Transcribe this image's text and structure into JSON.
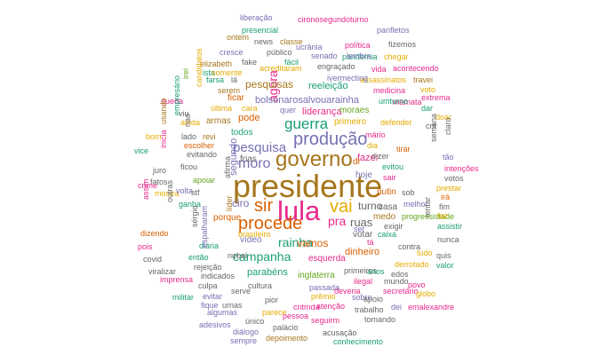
{
  "palette": {
    "teal": "#1b9e77",
    "orange": "#d95f02",
    "purple": "#7570b3",
    "pink": "#e7298a",
    "green": "#66a61e",
    "gold": "#e6ab02",
    "brown": "#a6761d",
    "gray": "#666666"
  },
  "words": [
    {
      "text": "presidente",
      "color": "brown"
    },
    {
      "text": "lula",
      "color": "pink"
    },
    {
      "text": "governo",
      "color": "brown"
    },
    {
      "text": "produção",
      "color": "purple"
    },
    {
      "text": "procede",
      "color": "orange"
    },
    {
      "text": "sir",
      "color": "orange"
    },
    {
      "text": "vai",
      "color": "gold"
    },
    {
      "text": "guerra",
      "color": "teal"
    },
    {
      "text": "moro",
      "color": "purple"
    },
    {
      "text": "rainha",
      "color": "teal"
    },
    {
      "text": "pesquisa",
      "color": "purple"
    },
    {
      "text": "agora",
      "color": "pink"
    },
    {
      "text": "pra",
      "color": "pink"
    },
    {
      "text": "campanha",
      "color": "teal"
    },
    {
      "text": "turno",
      "color": "gray"
    },
    {
      "text": "ruas",
      "color": "gray"
    },
    {
      "text": "vamos",
      "color": "orange"
    },
    {
      "text": "bolsonarosalvouarainha",
      "color": "purple"
    },
    {
      "text": "reeleição",
      "color": "teal"
    },
    {
      "text": "pesquisas",
      "color": "brown"
    },
    {
      "text": "liderança",
      "color": "pink"
    },
    {
      "text": "moraes",
      "color": "green"
    },
    {
      "text": "primeiro",
      "color": "gold"
    },
    {
      "text": "fazer",
      "color": "pink"
    },
    {
      "text": "frias",
      "color": "gray"
    },
    {
      "text": "ciro",
      "color": "purple"
    },
    {
      "text": "segundo",
      "color": "purple"
    },
    {
      "text": "todos",
      "color": "teal"
    },
    {
      "text": "pode",
      "color": "orange"
    },
    {
      "text": "armas",
      "color": "brown"
    },
    {
      "text": "dinheiro",
      "color": "orange"
    },
    {
      "text": "esquerda",
      "color": "pink"
    },
    {
      "text": "inglaterra",
      "color": "green"
    },
    {
      "text": "parabéns",
      "color": "teal"
    },
    {
      "text": "porque",
      "color": "orange"
    },
    {
      "text": "vídeo",
      "color": "purple"
    },
    {
      "text": "votar",
      "color": "gray"
    },
    {
      "text": "hoje",
      "color": "purple"
    },
    {
      "text": "putin",
      "color": "orange"
    },
    {
      "text": "casa",
      "color": "gray"
    },
    {
      "text": "medo",
      "color": "brown"
    },
    {
      "text": "ser",
      "color": "purple"
    },
    {
      "text": "quer",
      "color": "purple"
    },
    {
      "text": "líder",
      "color": "brown"
    },
    {
      "text": "afirma",
      "color": "gray"
    },
    {
      "text": "dr",
      "color": "orange"
    },
    {
      "text": "liberação",
      "color": "purple"
    },
    {
      "text": "cironosegundoturno",
      "color": "pink"
    },
    {
      "text": "panfletos",
      "color": "purple"
    },
    {
      "text": "presencial",
      "color": "teal"
    },
    {
      "text": "news",
      "color": "gray"
    },
    {
      "text": "classe",
      "color": "brown"
    },
    {
      "text": "ontem",
      "color": "brown"
    },
    {
      "text": "ucrânia",
      "color": "purple"
    },
    {
      "text": "política",
      "color": "pink"
    },
    {
      "text": "pandemia",
      "color": "teal"
    },
    {
      "text": "fizemos",
      "color": "gray"
    },
    {
      "text": "cresce",
      "color": "purple"
    },
    {
      "text": "público",
      "color": "gray"
    },
    {
      "text": "senado",
      "color": "purple"
    },
    {
      "text": "lembra",
      "color": "purple"
    },
    {
      "text": "chegar",
      "color": "gold"
    },
    {
      "text": "elizabeth",
      "color": "brown"
    },
    {
      "text": "fake",
      "color": "gray"
    },
    {
      "text": "fácil",
      "color": "teal"
    },
    {
      "text": "engraçado",
      "color": "gray"
    },
    {
      "text": "acreditaram",
      "color": "gold"
    },
    {
      "text": "vida",
      "color": "pink"
    },
    {
      "text": "acontecendo",
      "color": "pink"
    },
    {
      "text": "ista",
      "color": "teal"
    },
    {
      "text": "somente",
      "color": "gold"
    },
    {
      "text": "assassinatos",
      "color": "gold"
    },
    {
      "text": "travei",
      "color": "brown"
    },
    {
      "text": "farsa",
      "color": "teal"
    },
    {
      "text": "lá",
      "color": "gray"
    },
    {
      "text": "ivermecting",
      "color": "purple"
    },
    {
      "text": "medicina",
      "color": "pink"
    },
    {
      "text": "voto",
      "color": "gold"
    },
    {
      "text": "irei",
      "color": "green"
    },
    {
      "text": "serem",
      "color": "brown"
    },
    {
      "text": "ficar",
      "color": "orange"
    },
    {
      "text": "mamata",
      "color": "pink"
    },
    {
      "text": "extrema",
      "color": "pink"
    },
    {
      "text": "candidatos",
      "color": "gold"
    },
    {
      "text": "queda",
      "color": "pink"
    },
    {
      "text": "última",
      "color": "gold"
    },
    {
      "text": "cara",
      "color": "gold"
    },
    {
      "text": "umturno",
      "color": "teal"
    },
    {
      "text": "dar",
      "color": "teal"
    },
    {
      "text": "viu",
      "color": "gray"
    },
    {
      "text": "ainda",
      "color": "gold"
    },
    {
      "text": "defender",
      "color": "gold"
    },
    {
      "text": "doar",
      "color": "gold"
    },
    {
      "text": "usando",
      "color": "brown"
    },
    {
      "text": "empresário",
      "color": "teal"
    },
    {
      "text": "lado",
      "color": "gray"
    },
    {
      "text": "revi",
      "color": "brown"
    },
    {
      "text": "mário",
      "color": "pink"
    },
    {
      "text": "cnt",
      "color": "gray"
    },
    {
      "text": "bom",
      "color": "gold"
    },
    {
      "text": "nao",
      "color": "gray"
    },
    {
      "text": "escolher",
      "color": "orange"
    },
    {
      "text": "dia",
      "color": "gold"
    },
    {
      "text": "tirar",
      "color": "orange"
    },
    {
      "text": "claro",
      "color": "gray"
    },
    {
      "text": "vice",
      "color": "teal"
    },
    {
      "text": "inicia",
      "color": "pink"
    },
    {
      "text": "evitando",
      "color": "gray"
    },
    {
      "text": "dizer",
      "color": "gray"
    },
    {
      "text": "tão",
      "color": "purple"
    },
    {
      "text": "juro",
      "color": "gray"
    },
    {
      "text": "ficou",
      "color": "gray"
    },
    {
      "text": "evitou",
      "color": "teal"
    },
    {
      "text": "semana",
      "color": "gray"
    },
    {
      "text": "intenções",
      "color": "pink"
    },
    {
      "text": "fatos",
      "color": "gray"
    },
    {
      "text": "apoiar",
      "color": "green"
    },
    {
      "text": "sair",
      "color": "pink"
    },
    {
      "text": "votos",
      "color": "gray"
    },
    {
      "text": "crime",
      "color": "pink"
    },
    {
      "text": "prestar",
      "color": "gold"
    },
    {
      "text": "mostra",
      "color": "gold"
    },
    {
      "text": "volta",
      "color": "purple"
    },
    {
      "text": "stf",
      "color": "gray"
    },
    {
      "text": "sob",
      "color": "gray"
    },
    {
      "text": "irá",
      "color": "orange"
    },
    {
      "text": "assim",
      "color": "pink"
    },
    {
      "text": "outras",
      "color": "gray"
    },
    {
      "text": "ganha",
      "color": "teal"
    },
    {
      "text": "melhor",
      "color": "purple"
    },
    {
      "text": "fim",
      "color": "gray"
    },
    {
      "text": "tentar",
      "color": "gray"
    },
    {
      "text": "progressistade",
      "color": "green"
    },
    {
      "text": "faz",
      "color": "gold"
    },
    {
      "text": "exigir",
      "color": "gray"
    },
    {
      "text": "assistir",
      "color": "teal"
    },
    {
      "text": "caixa",
      "color": "teal"
    },
    {
      "text": "dizendo",
      "color": "orange"
    },
    {
      "text": "sérgio",
      "color": "gray"
    },
    {
      "text": "brasileiro",
      "color": "gold"
    },
    {
      "text": "tá",
      "color": "pink"
    },
    {
      "text": "nunca",
      "color": "gray"
    },
    {
      "text": "pois",
      "color": "pink"
    },
    {
      "text": "diária",
      "color": "teal"
    },
    {
      "text": "nobel",
      "color": "gray"
    },
    {
      "text": "contra",
      "color": "gray"
    },
    {
      "text": "tudo",
      "color": "gold"
    },
    {
      "text": "quis",
      "color": "gray"
    },
    {
      "text": "então",
      "color": "teal"
    },
    {
      "text": "covid",
      "color": "gray"
    },
    {
      "text": "rejeição",
      "color": "gray"
    },
    {
      "text": "espalharam",
      "color": "purple"
    },
    {
      "text": "derrotado",
      "color": "gold"
    },
    {
      "text": "valor",
      "color": "teal"
    },
    {
      "text": "viralizar",
      "color": "gray"
    },
    {
      "text": "indicados",
      "color": "gray"
    },
    {
      "text": "primeiros",
      "color": "gray"
    },
    {
      "text": "anos",
      "color": "teal"
    },
    {
      "text": "edos",
      "color": "gray"
    },
    {
      "text": "imprensa",
      "color": "pink"
    },
    {
      "text": "ilegal",
      "color": "pink"
    },
    {
      "text": "mundo",
      "color": "gray"
    },
    {
      "text": "povo",
      "color": "pink"
    },
    {
      "text": "culpa",
      "color": "gray"
    },
    {
      "text": "cultura",
      "color": "gray"
    },
    {
      "text": "passada",
      "color": "purple"
    },
    {
      "text": "deveria",
      "color": "pink"
    },
    {
      "text": "secretário",
      "color": "pink"
    },
    {
      "text": "globo",
      "color": "gold"
    },
    {
      "text": "militar",
      "color": "teal"
    },
    {
      "text": "evitar",
      "color": "purple"
    },
    {
      "text": "serve",
      "color": "gray"
    },
    {
      "text": "pior",
      "color": "gray"
    },
    {
      "text": "prêmio",
      "color": "gold"
    },
    {
      "text": "sobre",
      "color": "purple"
    },
    {
      "text": "cntmda",
      "color": "pink"
    },
    {
      "text": "apoio",
      "color": "gray"
    },
    {
      "text": "fique",
      "color": "purple"
    },
    {
      "text": "urnas",
      "color": "gray"
    },
    {
      "text": "atenção",
      "color": "pink"
    },
    {
      "text": "trabalho",
      "color": "gray"
    },
    {
      "text": "dei",
      "color": "purple"
    },
    {
      "text": "emalexandre",
      "color": "pink"
    },
    {
      "text": "algumas",
      "color": "purple"
    },
    {
      "text": "parece",
      "color": "gold"
    },
    {
      "text": "pessoa",
      "color": "pink"
    },
    {
      "text": "seguirm",
      "color": "pink"
    },
    {
      "text": "tomando",
      "color": "gray"
    },
    {
      "text": "adesivos",
      "color": "purple"
    },
    {
      "text": "único",
      "color": "gray"
    },
    {
      "text": "palácio",
      "color": "gray"
    },
    {
      "text": "diálogo",
      "color": "purple"
    },
    {
      "text": "acusação",
      "color": "gray"
    },
    {
      "text": "sempre",
      "color": "purple"
    },
    {
      "text": "depoimento",
      "color": "brown"
    },
    {
      "text": "conhecimento",
      "color": "teal"
    }
  ]
}
